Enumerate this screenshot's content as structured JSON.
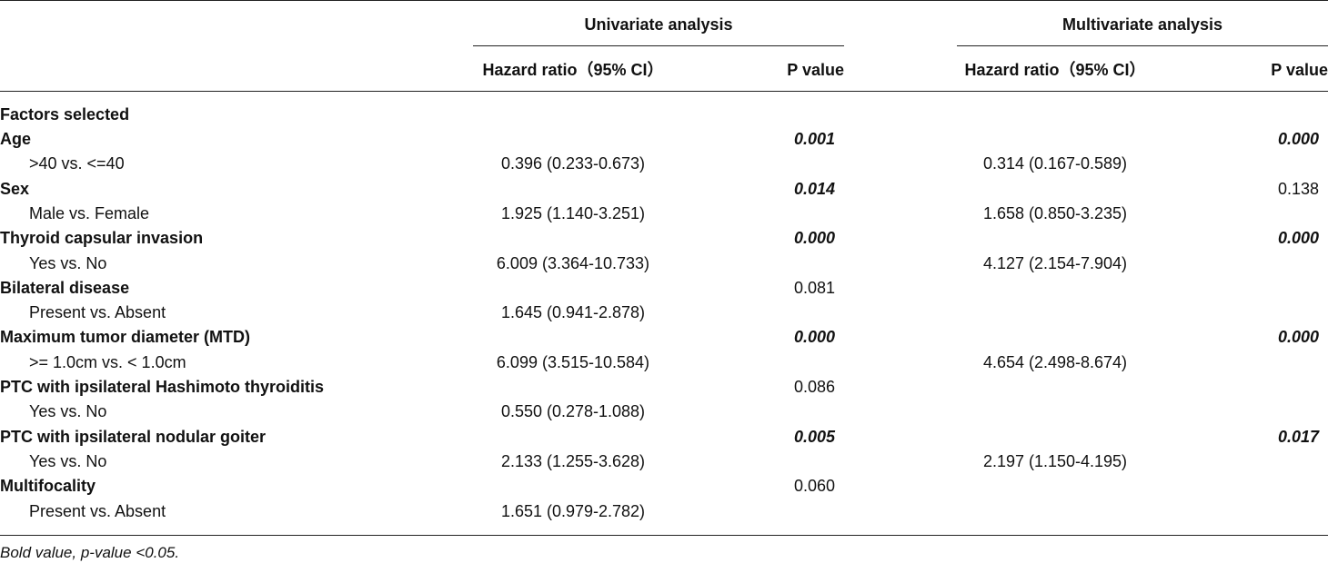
{
  "table": {
    "groups": [
      {
        "label": "Univariate analysis"
      },
      {
        "label": "Multivariate analysis"
      }
    ],
    "columns": {
      "uni_hr": "Hazard ratio（95% CI）",
      "uni_p": "P value",
      "multi_hr": "Hazard ratio（95% CI）",
      "multi_p": "P value"
    },
    "section_label": "Factors selected",
    "rows": [
      {
        "label": "Age",
        "uni_p": "0.001",
        "uni_p_bold": true,
        "multi_p": "0.000",
        "multi_p_bold": true,
        "sub": {
          "label": ">40 vs. <=40",
          "uni_hr": "0.396 (0.233-0.673)",
          "multi_hr": "0.314 (0.167-0.589)"
        }
      },
      {
        "label": "Sex",
        "uni_p": "0.014",
        "uni_p_bold": true,
        "multi_p": "0.138",
        "multi_p_bold": false,
        "sub": {
          "label": "Male vs. Female",
          "uni_hr": "1.925 (1.140-3.251)",
          "multi_hr": "1.658 (0.850-3.235)"
        }
      },
      {
        "label": "Thyroid capsular invasion",
        "uni_p": "0.000",
        "uni_p_bold": true,
        "multi_p": "0.000",
        "multi_p_bold": true,
        "sub": {
          "label": "Yes vs. No",
          "uni_hr": "6.009 (3.364-10.733)",
          "multi_hr": "4.127 (2.154-7.904)"
        }
      },
      {
        "label": "Bilateral disease",
        "uni_p": "0.081",
        "uni_p_bold": false,
        "multi_p": "",
        "multi_p_bold": false,
        "sub": {
          "label": "Present vs. Absent",
          "uni_hr": "1.645 (0.941-2.878)",
          "multi_hr": ""
        }
      },
      {
        "label": "Maximum tumor diameter (MTD)",
        "uni_p": "0.000",
        "uni_p_bold": true,
        "multi_p": "0.000",
        "multi_p_bold": true,
        "sub": {
          "label": ">= 1.0cm vs. < 1.0cm",
          "uni_hr": "6.099 (3.515-10.584)",
          "multi_hr": "4.654 (2.498-8.674)"
        }
      },
      {
        "label": "PTC with ipsilateral Hashimoto thyroiditis",
        "uni_p": "0.086",
        "uni_p_bold": false,
        "multi_p": "",
        "multi_p_bold": false,
        "sub": {
          "label": "Yes vs. No",
          "uni_hr": "0.550 (0.278-1.088)",
          "multi_hr": ""
        }
      },
      {
        "label": "PTC with ipsilateral nodular goiter",
        "uni_p": "0.005",
        "uni_p_bold": true,
        "multi_p": "0.017",
        "multi_p_bold": true,
        "sub": {
          "label": "Yes vs. No",
          "uni_hr": "2.133 (1.255-3.628)",
          "multi_hr": "2.197 (1.150-4.195)"
        }
      },
      {
        "label": "Multifocality",
        "uni_p": "0.060",
        "uni_p_bold": false,
        "multi_p": "",
        "multi_p_bold": false,
        "sub": {
          "label": "Present vs. Absent",
          "uni_hr": "1.651 (0.979-2.782)",
          "multi_hr": ""
        }
      }
    ],
    "footnote": "Bold value, p-value <0.05."
  }
}
